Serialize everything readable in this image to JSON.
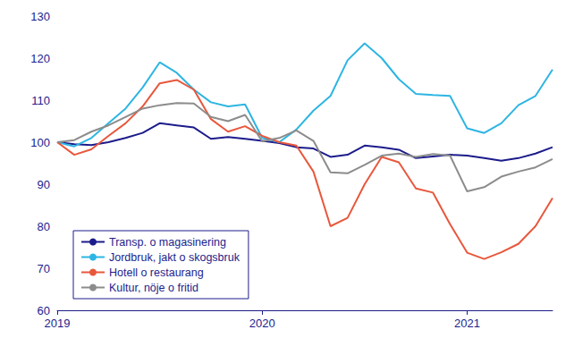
{
  "chart_data": {
    "type": "line",
    "categories": [
      "2019",
      null,
      null,
      null,
      null,
      null,
      null,
      null,
      null,
      null,
      null,
      null,
      "2020",
      null,
      null,
      null,
      null,
      null,
      null,
      null,
      null,
      null,
      null,
      null,
      "2021",
      null,
      null,
      null,
      null,
      null
    ],
    "series": [
      {
        "name": "Transp. o magasinering",
        "color": "#1c1c8c",
        "values": [
          100,
          99.5,
          99.3,
          100,
          101,
          102.2,
          104.5,
          104,
          103.5,
          100.8,
          101.2,
          100.8,
          100.3,
          99.8,
          98.8,
          98.5,
          96.5,
          97,
          99.2,
          98.8,
          98.2,
          96.2,
          96.6,
          97,
          96.8,
          96.2,
          95.6,
          96.2,
          97.3,
          98.8
        ]
      },
      {
        "name": "Jordbruk, jakt o skogsbruk",
        "color": "#2db5e3",
        "values": [
          100,
          99,
          101,
          104.5,
          108,
          113,
          119,
          116.5,
          112.5,
          109.5,
          108.5,
          109,
          101,
          100,
          103,
          107.5,
          111,
          119.5,
          123.5,
          120,
          115,
          111.5,
          111.2,
          111,
          103.3,
          102.2,
          104.5,
          108.8,
          111,
          117.3
        ]
      },
      {
        "name": "Hotell o restaurang",
        "color": "#e8573c",
        "values": [
          100,
          97,
          98.3,
          101.5,
          104.5,
          108.5,
          114,
          114.8,
          112.5,
          105.5,
          102.5,
          103.8,
          101.5,
          100,
          99.2,
          93,
          80,
          82,
          90,
          96.5,
          95.2,
          89,
          88,
          80.5,
          73.7,
          72.2,
          73.8,
          75.8,
          80,
          86.7
        ]
      },
      {
        "name": "Kultur, nöje o fritid",
        "color": "#8c8c8c",
        "values": [
          100,
          100.5,
          102.5,
          104,
          106,
          108,
          108.8,
          109.3,
          109.2,
          106,
          105,
          106.5,
          100.2,
          101,
          102.8,
          100.3,
          92.8,
          92.6,
          94.6,
          96.8,
          97.3,
          96.5,
          97.2,
          96.8,
          88.3,
          89.3,
          91.8,
          93,
          94,
          96
        ]
      }
    ],
    "ylim": [
      60,
      130
    ],
    "yticks": [
      60,
      70,
      80,
      90,
      100,
      110,
      120,
      130
    ],
    "grid": false,
    "legend": "lower left"
  }
}
